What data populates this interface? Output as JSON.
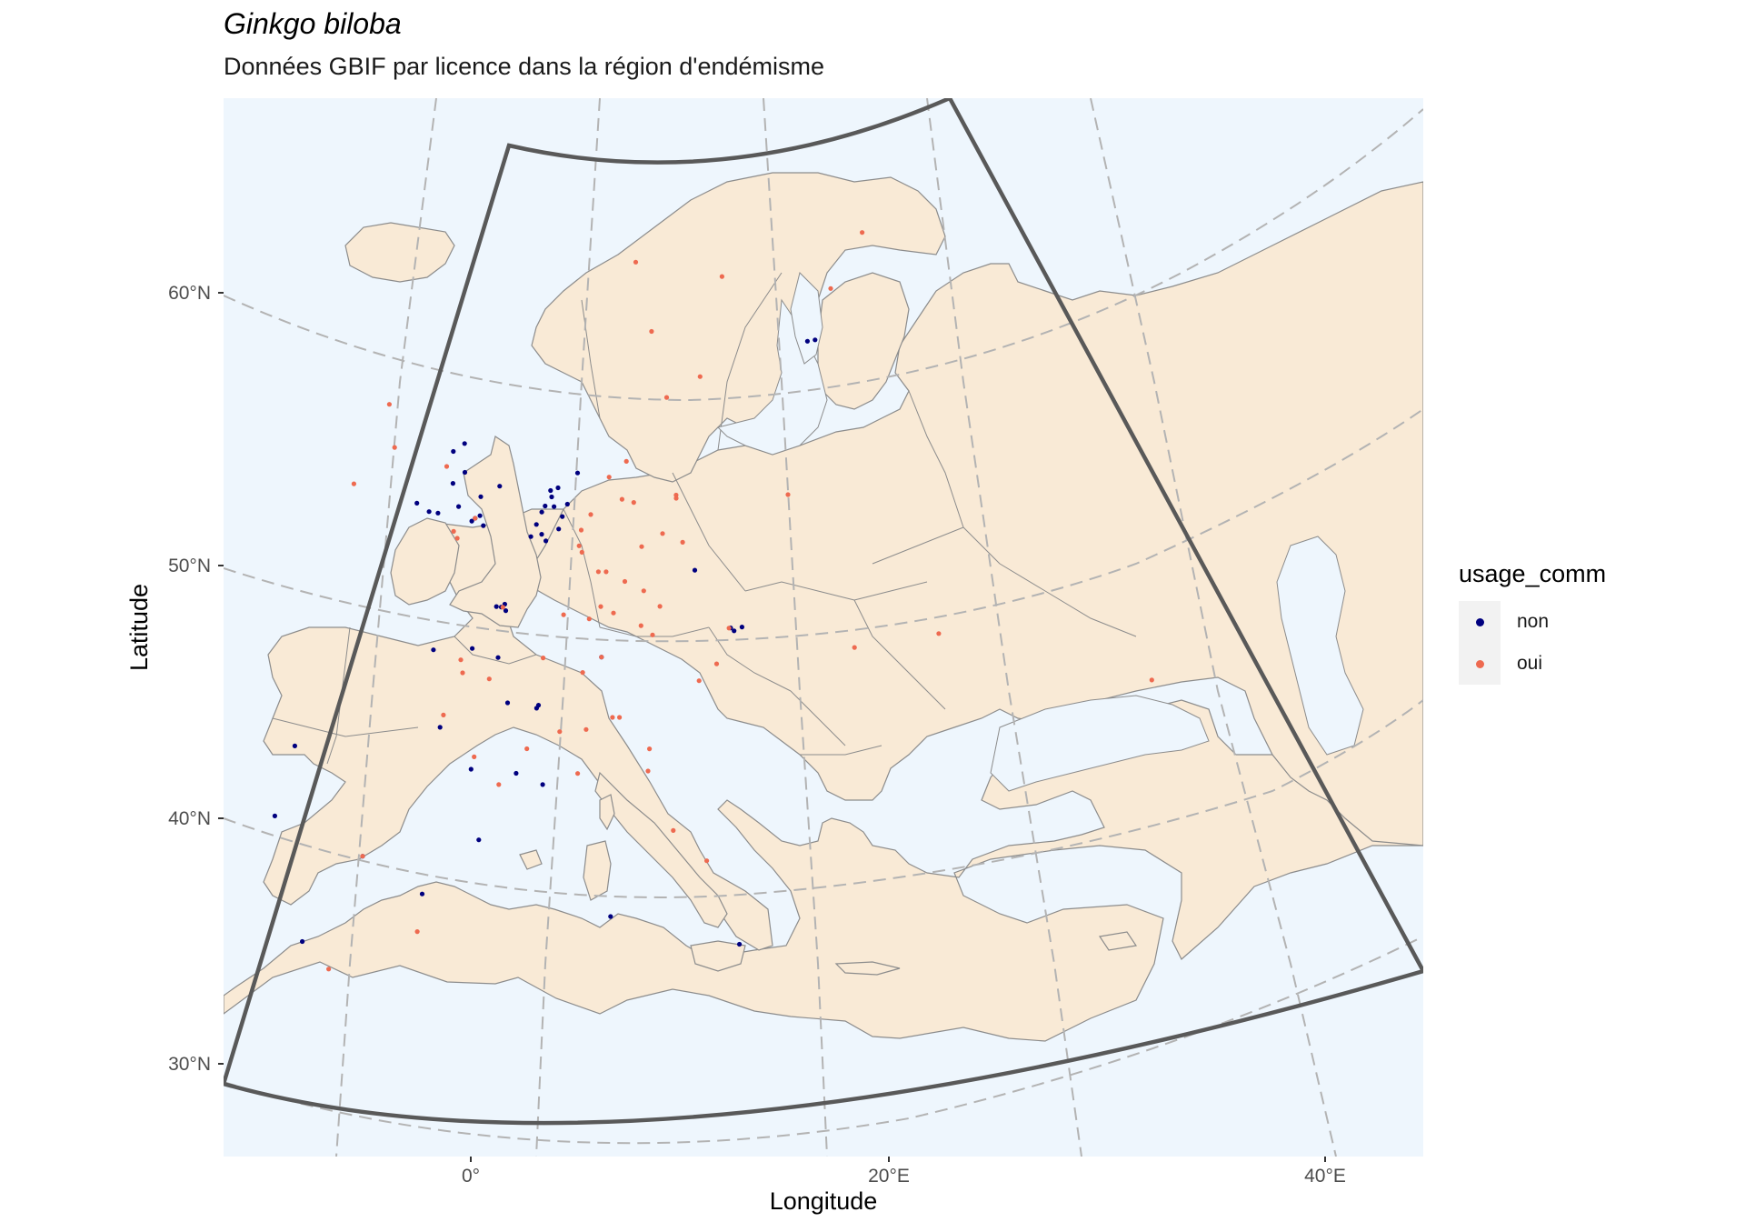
{
  "title": "Ginkgo biloba",
  "subtitle": "Données GBIF par licence dans la région d'endémisme",
  "chart_data": {
    "type": "scatter",
    "map_projection": "conic (Europe)",
    "xlabel": "Longitude",
    "ylabel": "Latitude",
    "x_tick_labels": [
      "0°",
      "20°E",
      "40°E"
    ],
    "y_tick_labels": [
      "30°N",
      "40°N",
      "50°N",
      "60°N"
    ],
    "graticule": "dashed",
    "legend": {
      "title": "usage_comm",
      "position": "right",
      "items": [
        {
          "label": "non",
          "color": "#00007f"
        },
        {
          "label": "oui",
          "color": "#ee6a50"
        }
      ]
    },
    "colors": {
      "land": "#f9ead6",
      "sea": "#eef6fd",
      "borders": "#8c8c8c",
      "frame": "#595959",
      "graticule": "#b3b3b3"
    },
    "series": [
      {
        "name": "non",
        "points": [
          [
            -0.1,
            51.5
          ],
          [
            -0.3,
            51.4
          ],
          [
            0.2,
            51.6
          ],
          [
            -1.2,
            52.9
          ],
          [
            -1.5,
            53.8
          ],
          [
            -2.2,
            53.5
          ],
          [
            -1.9,
            52.5
          ],
          [
            -3.2,
            51.5
          ],
          [
            -4.1,
            51.7
          ],
          [
            1.3,
            52.6
          ],
          [
            0.1,
            52.2
          ],
          [
            -1.3,
            51.8
          ],
          [
            -2.6,
            51.5
          ],
          [
            0.5,
            51.3
          ],
          [
            4.9,
            52.4
          ],
          [
            4.5,
            52.1
          ],
          [
            5.1,
            52.1
          ],
          [
            4.3,
            51.9
          ],
          [
            5.5,
            51.4
          ],
          [
            6.0,
            52.2
          ],
          [
            5.7,
            51.8
          ],
          [
            4.4,
            51.2
          ],
          [
            4.7,
            51.0
          ],
          [
            6.6,
            53.2
          ],
          [
            5.3,
            52.7
          ],
          [
            4.8,
            52.6
          ],
          [
            4.0,
            51.5
          ],
          [
            3.7,
            51.1
          ],
          [
            2.4,
            48.9
          ],
          [
            2.2,
            48.8
          ],
          [
            2.5,
            48.7
          ],
          [
            1.9,
            48.8
          ],
          [
            2.3,
            47.2
          ],
          [
            3.1,
            45.8
          ],
          [
            4.8,
            45.7
          ],
          [
            4.9,
            45.8
          ],
          [
            1.4,
            43.6
          ],
          [
            -0.6,
            44.8
          ],
          [
            3.9,
            43.6
          ],
          [
            0.7,
            47.4
          ],
          [
            -1.6,
            47.2
          ],
          [
            5.4,
            43.3
          ],
          [
            2.2,
            41.4
          ],
          [
            -3.7,
            40.4
          ],
          [
            -8.6,
            41.1
          ],
          [
            -8.4,
            43.4
          ],
          [
            -5.9,
            37.4
          ],
          [
            -0.4,
            39.5
          ],
          [
            16.4,
            48.2
          ],
          [
            16.6,
            48.1
          ],
          [
            17.1,
            48.2
          ],
          [
            14.4,
            50.1
          ],
          [
            24.1,
            56.9
          ],
          [
            24.7,
            56.9
          ],
          [
            8.5,
            47.4
          ],
          [
            15.6,
            38.2
          ],
          [
            9.2,
            39.2
          ]
        ]
      },
      {
        "name": "oui",
        "points": [
          [
            13.4,
            52.5
          ],
          [
            11.6,
            48.1
          ],
          [
            9.2,
            48.8
          ],
          [
            8.7,
            50.1
          ],
          [
            10.0,
            53.6
          ],
          [
            7.0,
            51.4
          ],
          [
            6.9,
            50.9
          ],
          [
            12.4,
            51.3
          ],
          [
            13.7,
            51.0
          ],
          [
            9.7,
            52.4
          ],
          [
            8.4,
            49.0
          ],
          [
            11.1,
            49.5
          ],
          [
            10.9,
            48.4
          ],
          [
            7.6,
            51.9
          ],
          [
            7.1,
            50.7
          ],
          [
            8.2,
            50.1
          ],
          [
            9.9,
            49.8
          ],
          [
            12.1,
            49.0
          ],
          [
            10.5,
            52.3
          ],
          [
            11.0,
            50.9
          ],
          [
            8.8,
            53.1
          ],
          [
            2.3,
            48.8
          ],
          [
            0.1,
            47.0
          ],
          [
            1.9,
            46.5
          ],
          [
            0.3,
            46.6
          ],
          [
            -0.5,
            45.2
          ],
          [
            1.5,
            44.0
          ],
          [
            3.0,
            43.2
          ],
          [
            4.4,
            44.4
          ],
          [
            6.2,
            45.0
          ],
          [
            7.3,
            43.7
          ],
          [
            5.0,
            47.3
          ],
          [
            6.1,
            48.7
          ],
          [
            7.7,
            48.6
          ],
          [
            -0.1,
            51.5
          ],
          [
            -1.4,
            51.0
          ],
          [
            -2.5,
            53.0
          ],
          [
            -1.1,
            50.8
          ],
          [
            -6.3,
            53.3
          ],
          [
            -8.5,
            51.9
          ],
          [
            -7.3,
            54.6
          ],
          [
            8.5,
            47.4
          ],
          [
            7.4,
            46.9
          ],
          [
            9.6,
            45.5
          ],
          [
            9.2,
            45.5
          ],
          [
            11.3,
            44.5
          ],
          [
            12.5,
            41.9
          ],
          [
            11.2,
            43.8
          ],
          [
            14.2,
            40.9
          ],
          [
            7.7,
            45.1
          ],
          [
            16.3,
            48.2
          ],
          [
            15.4,
            47.1
          ],
          [
            14.3,
            46.6
          ],
          [
            13.4,
            52.4
          ],
          [
            21.0,
            52.2
          ],
          [
            18.0,
            59.3
          ],
          [
            12.0,
            57.7
          ],
          [
            13.0,
            55.6
          ],
          [
            15.6,
            56.2
          ],
          [
            10.8,
            59.9
          ],
          [
            26.7,
            58.4
          ],
          [
            30.3,
            59.9
          ],
          [
            -3.7,
            40.4
          ],
          [
            -4.4,
            36.7
          ],
          [
            -0.4,
            38.3
          ],
          [
            39.7,
            43.6
          ],
          [
            28.8,
            47.0
          ],
          [
            23.7,
            47.1
          ]
        ]
      }
    ]
  }
}
